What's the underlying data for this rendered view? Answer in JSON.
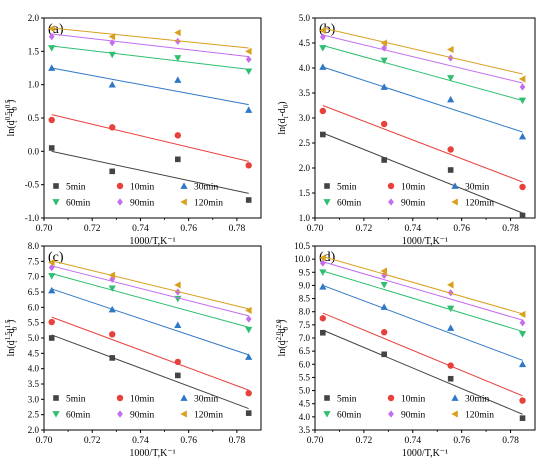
{
  "legend": {
    "labels": [
      "5min",
      "10min",
      "30min",
      "60min",
      "90min",
      "120min"
    ]
  },
  "series_style": [
    {
      "color": "#444444",
      "marker": "square"
    },
    {
      "color": "#e8413c",
      "marker": "circle"
    },
    {
      "color": "#2e78c7",
      "marker": "triangle-up"
    },
    {
      "color": "#2fbf71",
      "marker": "triangle-down"
    },
    {
      "color": "#c56cf0",
      "marker": "diamond"
    },
    {
      "color": "#d9a01d",
      "marker": "triangle-left"
    }
  ],
  "chart_data": [
    {
      "type": "scatter",
      "panel_label": "(a)",
      "xlabel": "1000/T,K⁻¹",
      "ylabel_base": "ln(d",
      "ylabel": "ln(d_t^0.5 - d_0^0.5)",
      "xlim": [
        0.7,
        0.79
      ],
      "ylim": [
        -1.0,
        2.0
      ],
      "xticks": [
        "0.70",
        "0.72",
        "0.74",
        "0.76",
        "0.78"
      ],
      "yticks": [
        "-1.0",
        "-0.5",
        "0.0",
        "0.5",
        "1.0",
        "1.5",
        "2.0"
      ],
      "ytick_values": [
        -1.0,
        -0.5,
        0.0,
        0.5,
        1.0,
        1.5,
        2.0
      ],
      "x": [
        0.7032,
        0.7283,
        0.7555,
        0.7849
      ],
      "series": [
        {
          "name": "5min",
          "values": [
            0.05,
            -0.3,
            -0.12,
            -0.73
          ],
          "fit": [
            0.0,
            -0.63
          ]
        },
        {
          "name": "10min",
          "values": [
            0.47,
            0.36,
            0.24,
            -0.21
          ],
          "fit": [
            0.55,
            -0.15
          ]
        },
        {
          "name": "30min",
          "values": [
            1.25,
            1.0,
            1.07,
            0.62
          ],
          "fit": [
            1.25,
            0.7
          ]
        },
        {
          "name": "60min",
          "values": [
            1.55,
            1.45,
            1.4,
            1.2
          ],
          "fit": [
            1.58,
            1.23
          ]
        },
        {
          "name": "90min",
          "values": [
            1.72,
            1.63,
            1.65,
            1.38
          ],
          "fit": [
            1.76,
            1.42
          ]
        },
        {
          "name": "120min",
          "values": [
            1.84,
            1.72,
            1.78,
            1.5
          ],
          "fit": [
            1.85,
            1.55
          ]
        }
      ]
    },
    {
      "type": "scatter",
      "panel_label": "(b)",
      "xlabel": "1000/T,K⁻¹",
      "ylabel": "ln(d_t - d_0)",
      "xlim": [
        0.7,
        0.79
      ],
      "ylim": [
        1.0,
        5.0
      ],
      "xticks": [
        "0.70",
        "0.72",
        "0.74",
        "0.76",
        "0.78"
      ],
      "yticks": [
        "1.0",
        "1.5",
        "2.0",
        "2.5",
        "3.0",
        "3.5",
        "4.0",
        "4.5",
        "5.0"
      ],
      "ytick_values": [
        1.0,
        1.5,
        2.0,
        2.5,
        3.0,
        3.5,
        4.0,
        4.5,
        5.0
      ],
      "x": [
        0.7032,
        0.7283,
        0.7555,
        0.7849
      ],
      "series": [
        {
          "name": "5min",
          "values": [
            2.67,
            2.16,
            1.96,
            1.05
          ],
          "fit": [
            2.7,
            1.1
          ]
        },
        {
          "name": "10min",
          "values": [
            3.14,
            2.88,
            2.37,
            1.62
          ],
          "fit": [
            3.25,
            1.72
          ]
        },
        {
          "name": "30min",
          "values": [
            4.02,
            3.62,
            3.37,
            2.63
          ],
          "fit": [
            4.02,
            2.72
          ]
        },
        {
          "name": "60min",
          "values": [
            4.4,
            4.15,
            3.8,
            3.35
          ],
          "fit": [
            4.45,
            3.35
          ]
        },
        {
          "name": "90min",
          "values": [
            4.62,
            4.4,
            4.2,
            3.62
          ],
          "fit": [
            4.66,
            3.7
          ]
        },
        {
          "name": "120min",
          "values": [
            4.75,
            4.5,
            4.37,
            3.78
          ],
          "fit": [
            4.8,
            3.88
          ]
        }
      ]
    },
    {
      "type": "scatter",
      "panel_label": "(c)",
      "xlabel": "1000/T,K⁻¹",
      "ylabel": "ln(d_t^1.5 - d_0^1.5)",
      "xlim": [
        0.7,
        0.79
      ],
      "ylim": [
        2.0,
        8.0
      ],
      "xticks": [
        "0.70",
        "0.72",
        "0.74",
        "0.76",
        "0.78"
      ],
      "yticks": [
        "2.0",
        "2.5",
        "3.0",
        "3.5",
        "4.0",
        "4.5",
        "5.0",
        "5.5",
        "6.0",
        "6.5",
        "7.0",
        "7.5",
        "8.0"
      ],
      "ytick_values": [
        2.0,
        2.5,
        3.0,
        3.5,
        4.0,
        4.5,
        5.0,
        5.5,
        6.0,
        6.5,
        7.0,
        7.5,
        8.0
      ],
      "x": [
        0.7032,
        0.7283,
        0.7555,
        0.7849
      ],
      "series": [
        {
          "name": "5min",
          "values": [
            5.0,
            4.35,
            3.78,
            2.55
          ],
          "fit": [
            5.1,
            2.7
          ]
        },
        {
          "name": "10min",
          "values": [
            5.52,
            5.12,
            4.22,
            3.2
          ],
          "fit": [
            5.68,
            3.3
          ]
        },
        {
          "name": "30min",
          "values": [
            6.55,
            5.93,
            5.42,
            4.38
          ],
          "fit": [
            6.6,
            4.45
          ]
        },
        {
          "name": "60min",
          "values": [
            7.02,
            6.62,
            6.28,
            5.27
          ],
          "fit": [
            7.1,
            5.35
          ]
        },
        {
          "name": "90min",
          "values": [
            7.3,
            6.92,
            6.5,
            5.62
          ],
          "fit": [
            7.35,
            5.72
          ]
        },
        {
          "name": "120min",
          "values": [
            7.46,
            7.05,
            6.73,
            5.9
          ],
          "fit": [
            7.52,
            5.95
          ]
        }
      ]
    },
    {
      "type": "scatter",
      "panel_label": "(d)",
      "xlabel": "1000/T,K⁻¹",
      "ylabel": "ln(d_t^2.0 - d_0^2.0)",
      "xlim": [
        0.7,
        0.79
      ],
      "ylim": [
        3.5,
        10.5
      ],
      "xticks": [
        "0.70",
        "0.72",
        "0.74",
        "0.76",
        "0.78"
      ],
      "yticks": [
        "3.5",
        "4.0",
        "4.5",
        "5.0",
        "5.5",
        "6.0",
        "6.5",
        "7.0",
        "7.5",
        "8.0",
        "8.5",
        "9.0",
        "9.5",
        "10.0",
        "10.5"
      ],
      "ytick_values": [
        3.5,
        4.0,
        4.5,
        5.0,
        5.5,
        6.0,
        6.5,
        7.0,
        7.5,
        8.0,
        8.5,
        9.0,
        9.5,
        10.0,
        10.5
      ],
      "x": [
        0.7032,
        0.7283,
        0.7555,
        0.7849
      ],
      "series": [
        {
          "name": "5min",
          "values": [
            7.2,
            6.38,
            5.45,
            3.95
          ],
          "fit": [
            7.3,
            4.1
          ]
        },
        {
          "name": "10min",
          "values": [
            7.75,
            7.22,
            5.95,
            4.62
          ],
          "fit": [
            7.95,
            4.8
          ]
        },
        {
          "name": "30min",
          "values": [
            8.95,
            8.18,
            7.38,
            6.0
          ],
          "fit": [
            9.0,
            6.15
          ]
        },
        {
          "name": "60min",
          "values": [
            9.5,
            9.02,
            8.12,
            7.15
          ],
          "fit": [
            9.55,
            7.25
          ]
        },
        {
          "name": "90min",
          "values": [
            9.85,
            9.38,
            8.72,
            7.58
          ],
          "fit": [
            9.9,
            7.68
          ]
        },
        {
          "name": "120min",
          "values": [
            10.05,
            9.55,
            9.02,
            7.9
          ],
          "fit": [
            10.1,
            7.92
          ]
        }
      ]
    }
  ]
}
